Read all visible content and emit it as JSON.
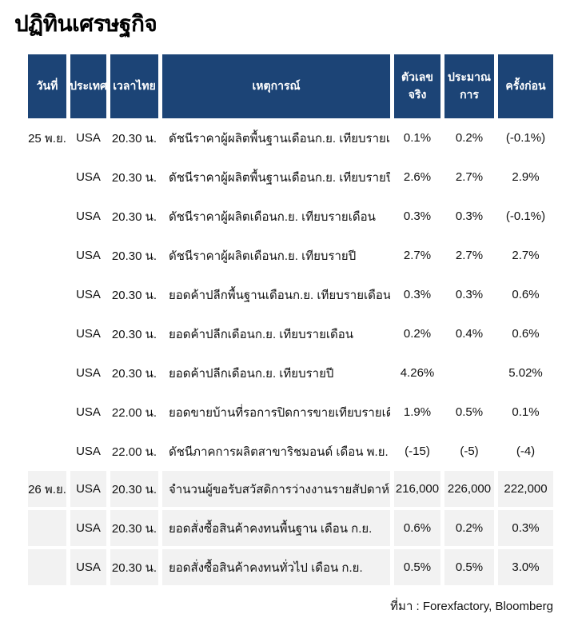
{
  "page": {
    "title": "ปฏิทินเศรษฐกิจ",
    "source_note": "ที่มา : Forexfactory, Bloomberg"
  },
  "colors": {
    "header_bg": "#1c4476",
    "header_text": "#ffffff",
    "shaded_row_bg": "#f2f2f2",
    "body_text": "#111111"
  },
  "table": {
    "columns": [
      {
        "key": "date",
        "label": "วันที่"
      },
      {
        "key": "country",
        "label": "ประเทศ"
      },
      {
        "key": "time",
        "label": "เวลาไทย"
      },
      {
        "key": "event",
        "label": "เหตุการณ์"
      },
      {
        "key": "actual",
        "label": "ตัวเลขจริง"
      },
      {
        "key": "forecast",
        "label": "ประมาณการ"
      },
      {
        "key": "previous",
        "label": "ครั้งก่อน"
      }
    ],
    "rows": [
      {
        "date": "25 พ.ย.",
        "country": "USA",
        "time": "20.30 น.",
        "event": "ดัชนีราคาผู้ผลิตพื้นฐานเดือนก.ย. เทียบรายเดือน",
        "actual": "0.1%",
        "forecast": "0.2%",
        "previous": "(-0.1%)",
        "shaded": false
      },
      {
        "date": "",
        "country": "USA",
        "time": "20.30 น.",
        "event": "ดัชนีราคาผู้ผลิตพื้นฐานเดือนก.ย. เทียบรายปี",
        "actual": "2.6%",
        "forecast": "2.7%",
        "previous": "2.9%",
        "shaded": false
      },
      {
        "date": "",
        "country": "USA",
        "time": "20.30 น.",
        "event": "ดัชนีราคาผู้ผลิตเดือนก.ย. เทียบรายเดือน",
        "actual": "0.3%",
        "forecast": "0.3%",
        "previous": "(-0.1%)",
        "shaded": false
      },
      {
        "date": "",
        "country": "USA",
        "time": "20.30 น.",
        "event": "ดัชนีราคาผู้ผลิตเดือนก.ย. เทียบรายปี",
        "actual": "2.7%",
        "forecast": "2.7%",
        "previous": "2.7%",
        "shaded": false
      },
      {
        "date": "",
        "country": "USA",
        "time": "20.30 น.",
        "event": "ยอดค้าปลีกพื้นฐานเดือนก.ย. เทียบรายเดือน",
        "actual": "0.3%",
        "forecast": "0.3%",
        "previous": "0.6%",
        "shaded": false
      },
      {
        "date": "",
        "country": "USA",
        "time": "20.30 น.",
        "event": "ยอดค้าปลีกเดือนก.ย. เทียบรายเดือน",
        "actual": "0.2%",
        "forecast": "0.4%",
        "previous": "0.6%",
        "shaded": false
      },
      {
        "date": "",
        "country": "USA",
        "time": "20.30 น.",
        "event": "ยอดค้าปลีกเดือนก.ย. เทียบรายปี",
        "actual": "4.26%",
        "forecast": "",
        "previous": "5.02%",
        "shaded": false
      },
      {
        "date": "",
        "country": "USA",
        "time": "22.00 น.",
        "event": "ยอดขายบ้านที่รอการปิดการขายเทียบรายเดือน ต.ค.",
        "actual": "1.9%",
        "forecast": "0.5%",
        "previous": "0.1%",
        "shaded": false
      },
      {
        "date": "",
        "country": "USA",
        "time": "22.00 น.",
        "event": "ดัชนีภาคการผลิตสาขาริชมอนด์ เดือน พ.ย.",
        "actual": "(-15)",
        "forecast": "(-5)",
        "previous": "(-4)",
        "shaded": false
      },
      {
        "date": "26 พ.ย.",
        "country": "USA",
        "time": "20.30 น.",
        "event": "จำนวนผู้ขอรับสวัสดิการว่างงานรายสัปดาห์",
        "actual": "216,000",
        "forecast": "226,000",
        "previous": "222,000",
        "shaded": true
      },
      {
        "date": "",
        "country": "USA",
        "time": "20.30 น.",
        "event": "ยอดสั่งซื้อสินค้าคงทนพื้นฐาน เดือน ก.ย.",
        "actual": "0.6%",
        "forecast": "0.2%",
        "previous": "0.3%",
        "shaded": true
      },
      {
        "date": "",
        "country": "USA",
        "time": "20.30 น.",
        "event": "ยอดสั่งซื้อสินค้าคงทนทั่วไป เดือน ก.ย.",
        "actual": "0.5%",
        "forecast": "0.5%",
        "previous": "3.0%",
        "shaded": true
      }
    ]
  }
}
